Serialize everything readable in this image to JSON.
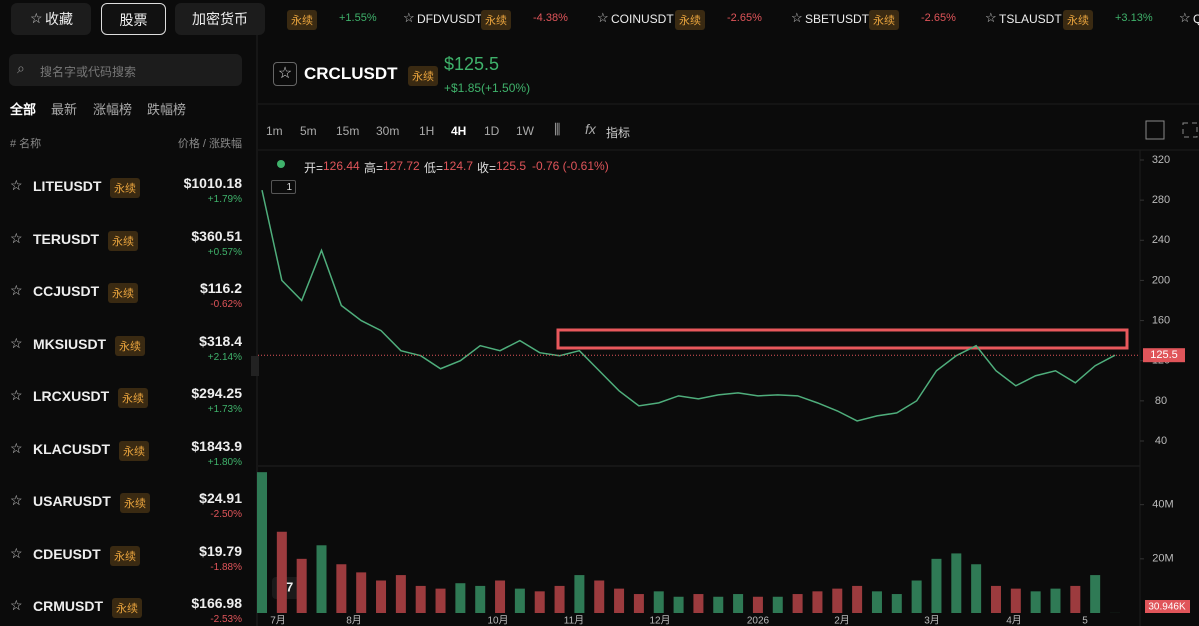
{
  "top_bar": {
    "buttons": [
      "收藏",
      "股票",
      "加密货币"
    ],
    "ticker": [
      {
        "tag": "永续",
        "change": "+1.55%"
      },
      {
        "name": "DFDVUSDT",
        "tag": "永续",
        "change": "-4.38%"
      },
      {
        "name": "COINUSDT",
        "tag": "永续",
        "change": "-2.65%"
      },
      {
        "name": "SBETUSDT",
        "tag": "永续",
        "change": "-2.65%"
      },
      {
        "name": "TSLAUSDT",
        "tag": "永续",
        "change": "+3.13%"
      },
      {
        "name": "QC"
      }
    ]
  },
  "sidebar": {
    "search_placeholder": "搜名字或代码搜索",
    "tabs": [
      "全部",
      "最新",
      "涨幅榜",
      "跌幅榜"
    ],
    "header": {
      "name": "# 名称",
      "price": "价格 / 涨跌幅"
    },
    "items": [
      {
        "symbol": "LITEUSDT",
        "tag": "永续",
        "price": "$1010.18",
        "change": "+1.79%"
      },
      {
        "symbol": "TERUSDT",
        "tag": "永续",
        "price": "$360.51",
        "change": "+0.57%"
      },
      {
        "symbol": "CCJUSDT",
        "tag": "永续",
        "price": "$116.2",
        "change": "-0.62%"
      },
      {
        "symbol": "MKSIUSDT",
        "tag": "永续",
        "price": "$318.4",
        "change": "+2.14%"
      },
      {
        "symbol": "LRCXUSDT",
        "tag": "永续",
        "price": "$294.25",
        "change": "+1.73%"
      },
      {
        "symbol": "KLACUSDT",
        "tag": "永续",
        "price": "$1843.9",
        "change": "+1.80%"
      },
      {
        "symbol": "USARUSDT",
        "tag": "永续",
        "price": "$24.91",
        "change": "-2.50%"
      },
      {
        "symbol": "CDEUSDT",
        "tag": "永续",
        "price": "$19.79",
        "change": "-1.88%"
      },
      {
        "symbol": "CRMUSDT",
        "tag": "永续",
        "price": "$166.98",
        "change": "-2.53%"
      }
    ]
  },
  "header": {
    "symbol": "CRCLUSDT",
    "tag": "永续",
    "price": "$125.5",
    "change": "+$1.85(+1.50%)"
  },
  "toolbar": {
    "timeframes": [
      "1m",
      "5m",
      "15m",
      "30m",
      "1H",
      "4H",
      "1D",
      "1W"
    ],
    "indicator": "指标"
  },
  "ohlc": {
    "items": [
      {
        "label": "开=",
        "value": "126.44"
      },
      {
        "label": "高=",
        "value": "127.72"
      },
      {
        "label": "低=",
        "value": "124.7"
      },
      {
        "label": "收=",
        "value": "125.5"
      }
    ],
    "change": "-0.76 (-0.61%)",
    "badge": "1"
  },
  "chart": {
    "type": "line",
    "color": "#4fae7c",
    "values": [
      290,
      200,
      180,
      230,
      175,
      160,
      150,
      130,
      125,
      112,
      120,
      135,
      130,
      140,
      128,
      125,
      130,
      110,
      90,
      75,
      78,
      85,
      82,
      86,
      88,
      85,
      86,
      85,
      78,
      70,
      60,
      65,
      68,
      80,
      110,
      125,
      135,
      110,
      95,
      105,
      110,
      98,
      115,
      125.5
    ],
    "ylim": [
      40,
      320
    ],
    "yticks": [
      320,
      280,
      240,
      200,
      160,
      120,
      80,
      40
    ],
    "last_price": 125.5,
    "x_labels": [
      "7月",
      "8月",
      "10月",
      "11月",
      "12月",
      "2026",
      "2月",
      "3月",
      "4月",
      "5"
    ],
    "volume": {
      "values": [
        52000000,
        30000000,
        20000000,
        25000000,
        18000000,
        15000000,
        12000000,
        14000000,
        10000000,
        9000000,
        11000000,
        10000000,
        12000000,
        9000000,
        8000000,
        10000000,
        14000000,
        12000000,
        9000000,
        7000000,
        8000000,
        6000000,
        7000000,
        6000000,
        7000000,
        6000000,
        6000000,
        7000000,
        8000000,
        9000000,
        10000000,
        8000000,
        7000000,
        12000000,
        20000000,
        22000000,
        18000000,
        10000000,
        9000000,
        8000000,
        9000000,
        10000000,
        14000000,
        30946
      ],
      "ylim": [
        0,
        52800000
      ],
      "yticks": [
        {
          "value": 20000000,
          "label": "20M"
        },
        {
          "value": 40000000,
          "label": "40M"
        }
      ],
      "last_label": "30.946K"
    }
  }
}
